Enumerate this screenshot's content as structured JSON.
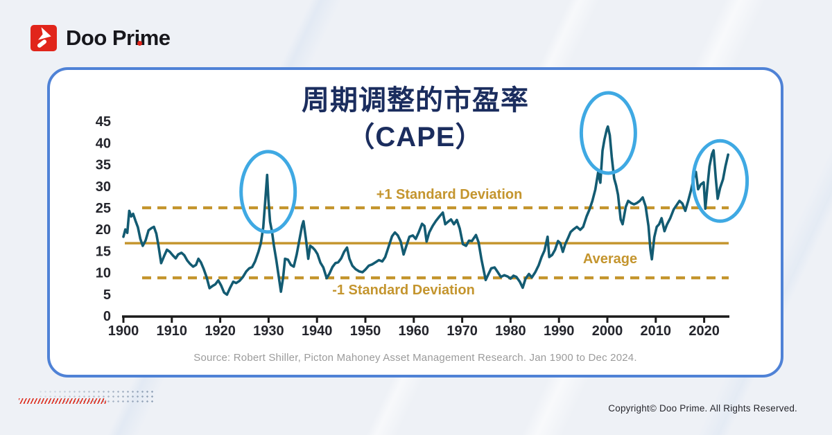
{
  "header": {
    "logo_text": "Doo Prime"
  },
  "chart_data": {
    "type": "line",
    "title_line1": "周期调整的市盈率",
    "title_line2": "（CAPE）",
    "xlabel": "",
    "ylabel": "",
    "xlim": [
      1900,
      2025
    ],
    "ylim": [
      0,
      45
    ],
    "grid": false,
    "x_ticks": [
      1900,
      1910,
      1920,
      1930,
      1940,
      1950,
      1960,
      1970,
      1980,
      1990,
      2000,
      2010,
      2020
    ],
    "y_ticks": [
      0,
      5,
      10,
      15,
      20,
      25,
      30,
      35,
      40,
      45
    ],
    "line_color": "#135b72",
    "gold_color": "#c4952e",
    "highlight_color": "#3fa9e3",
    "reference_lines": [
      {
        "label": "+1 Standard Deviation",
        "value": 25.0,
        "style": "dashed"
      },
      {
        "label": "Average",
        "value": 16.8,
        "style": "solid"
      },
      {
        "label": "-1 Standard Deviation",
        "value": 8.8,
        "style": "dashed"
      }
    ],
    "highlight_ellipses": [
      {
        "year": 1929.9,
        "value": 28.7
      },
      {
        "year": 2000.2,
        "value": 42.3
      },
      {
        "year": 2023.3,
        "value": 31.2
      }
    ],
    "series": [
      {
        "name": "CAPE",
        "points": [
          [
            1900.0,
            18.3
          ],
          [
            1900.4,
            20.0
          ],
          [
            1900.8,
            19.2
          ],
          [
            1901.2,
            24.3
          ],
          [
            1901.6,
            23.0
          ],
          [
            1902.0,
            23.6
          ],
          [
            1902.5,
            22.0
          ],
          [
            1903.0,
            20.5
          ],
          [
            1903.5,
            17.8
          ],
          [
            1904.0,
            16.2
          ],
          [
            1904.6,
            17.5
          ],
          [
            1905.2,
            19.8
          ],
          [
            1905.8,
            20.3
          ],
          [
            1906.3,
            20.6
          ],
          [
            1906.8,
            19.0
          ],
          [
            1907.2,
            16.5
          ],
          [
            1907.8,
            12.2
          ],
          [
            1908.4,
            13.8
          ],
          [
            1909.0,
            15.3
          ],
          [
            1909.6,
            14.8
          ],
          [
            1910.2,
            14.0
          ],
          [
            1910.8,
            13.3
          ],
          [
            1911.3,
            14.2
          ],
          [
            1912.0,
            14.6
          ],
          [
            1912.6,
            14.0
          ],
          [
            1913.2,
            12.8
          ],
          [
            1913.8,
            12.0
          ],
          [
            1914.4,
            11.4
          ],
          [
            1915.0,
            11.8
          ],
          [
            1915.5,
            13.2
          ],
          [
            1916.0,
            12.4
          ],
          [
            1916.6,
            10.8
          ],
          [
            1917.2,
            8.9
          ],
          [
            1917.8,
            6.4
          ],
          [
            1918.4,
            6.9
          ],
          [
            1919.0,
            7.3
          ],
          [
            1919.6,
            8.2
          ],
          [
            1920.2,
            7.0
          ],
          [
            1920.8,
            5.4
          ],
          [
            1921.4,
            4.9
          ],
          [
            1922.0,
            6.4
          ],
          [
            1922.7,
            7.9
          ],
          [
            1923.3,
            7.6
          ],
          [
            1924.0,
            8.1
          ],
          [
            1924.7,
            9.0
          ],
          [
            1925.4,
            10.3
          ],
          [
            1926.0,
            11.0
          ],
          [
            1926.6,
            11.3
          ],
          [
            1927.2,
            12.6
          ],
          [
            1927.9,
            14.8
          ],
          [
            1928.4,
            16.8
          ],
          [
            1928.9,
            20.5
          ],
          [
            1929.3,
            26.5
          ],
          [
            1929.7,
            32.6
          ],
          [
            1929.95,
            27.0
          ],
          [
            1930.3,
            21.8
          ],
          [
            1930.7,
            19.5
          ],
          [
            1931.1,
            16.2
          ],
          [
            1931.6,
            12.8
          ],
          [
            1932.1,
            9.0
          ],
          [
            1932.55,
            5.6
          ],
          [
            1933.0,
            8.8
          ],
          [
            1933.4,
            13.2
          ],
          [
            1934.0,
            13.0
          ],
          [
            1934.6,
            11.8
          ],
          [
            1935.2,
            11.4
          ],
          [
            1935.8,
            14.2
          ],
          [
            1936.3,
            17.2
          ],
          [
            1936.9,
            20.8
          ],
          [
            1937.2,
            21.9
          ],
          [
            1937.7,
            18.0
          ],
          [
            1938.2,
            13.2
          ],
          [
            1938.6,
            16.2
          ],
          [
            1939.1,
            15.8
          ],
          [
            1939.6,
            15.2
          ],
          [
            1940.1,
            14.3
          ],
          [
            1940.7,
            12.3
          ],
          [
            1941.3,
            11.2
          ],
          [
            1942.0,
            8.7
          ],
          [
            1942.6,
            9.8
          ],
          [
            1943.2,
            11.3
          ],
          [
            1943.8,
            12.2
          ],
          [
            1944.4,
            12.4
          ],
          [
            1945.0,
            13.3
          ],
          [
            1945.6,
            14.8
          ],
          [
            1946.2,
            15.8
          ],
          [
            1946.7,
            13.2
          ],
          [
            1947.3,
            11.6
          ],
          [
            1948.0,
            10.8
          ],
          [
            1948.7,
            10.3
          ],
          [
            1949.4,
            10.1
          ],
          [
            1950.0,
            10.7
          ],
          [
            1950.7,
            11.6
          ],
          [
            1951.4,
            11.9
          ],
          [
            1952.1,
            12.4
          ],
          [
            1952.8,
            12.9
          ],
          [
            1953.5,
            12.6
          ],
          [
            1954.1,
            13.6
          ],
          [
            1954.8,
            16.0
          ],
          [
            1955.5,
            18.4
          ],
          [
            1956.1,
            19.3
          ],
          [
            1956.7,
            18.6
          ],
          [
            1957.3,
            17.2
          ],
          [
            1957.9,
            14.2
          ],
          [
            1958.5,
            16.3
          ],
          [
            1959.1,
            18.3
          ],
          [
            1959.8,
            18.6
          ],
          [
            1960.4,
            17.8
          ],
          [
            1961.0,
            19.3
          ],
          [
            1961.7,
            21.3
          ],
          [
            1962.2,
            20.8
          ],
          [
            1962.65,
            17.2
          ],
          [
            1963.2,
            19.3
          ],
          [
            1963.9,
            20.8
          ],
          [
            1964.6,
            22.0
          ],
          [
            1965.3,
            23.0
          ],
          [
            1966.0,
            23.9
          ],
          [
            1966.5,
            21.2
          ],
          [
            1967.1,
            21.8
          ],
          [
            1967.7,
            22.3
          ],
          [
            1968.3,
            21.2
          ],
          [
            1968.9,
            22.2
          ],
          [
            1969.5,
            20.2
          ],
          [
            1970.15,
            16.6
          ],
          [
            1970.8,
            16.2
          ],
          [
            1971.4,
            17.4
          ],
          [
            1972.0,
            17.3
          ],
          [
            1972.85,
            18.7
          ],
          [
            1973.4,
            17.0
          ],
          [
            1974.0,
            13.0
          ],
          [
            1974.85,
            8.3
          ],
          [
            1975.4,
            9.6
          ],
          [
            1976.0,
            11.0
          ],
          [
            1976.7,
            11.2
          ],
          [
            1977.3,
            10.2
          ],
          [
            1978.0,
            9.0
          ],
          [
            1978.7,
            9.4
          ],
          [
            1979.4,
            9.1
          ],
          [
            1980.0,
            8.6
          ],
          [
            1980.6,
            9.3
          ],
          [
            1981.2,
            9.0
          ],
          [
            1981.9,
            7.9
          ],
          [
            1982.5,
            6.5
          ],
          [
            1983.1,
            8.6
          ],
          [
            1983.8,
            9.7
          ],
          [
            1984.4,
            8.9
          ],
          [
            1985.1,
            10.1
          ],
          [
            1985.8,
            11.7
          ],
          [
            1986.4,
            13.6
          ],
          [
            1987.0,
            15.1
          ],
          [
            1987.65,
            18.3
          ],
          [
            1988.0,
            13.6
          ],
          [
            1988.6,
            14.1
          ],
          [
            1989.2,
            15.3
          ],
          [
            1989.8,
            17.3
          ],
          [
            1990.3,
            16.8
          ],
          [
            1990.8,
            14.8
          ],
          [
            1991.3,
            16.6
          ],
          [
            1991.9,
            18.1
          ],
          [
            1992.4,
            19.4
          ],
          [
            1993.0,
            20.0
          ],
          [
            1993.7,
            20.6
          ],
          [
            1994.4,
            19.9
          ],
          [
            1995.0,
            20.6
          ],
          [
            1995.7,
            23.0
          ],
          [
            1996.3,
            24.6
          ],
          [
            1996.9,
            26.6
          ],
          [
            1997.5,
            29.2
          ],
          [
            1998.1,
            33.2
          ],
          [
            1998.55,
            30.8
          ],
          [
            1999.0,
            38.2
          ],
          [
            1999.4,
            40.8
          ],
          [
            1999.9,
            43.2
          ],
          [
            2000.1,
            43.8
          ],
          [
            2000.5,
            41.8
          ],
          [
            2000.9,
            36.8
          ],
          [
            2001.4,
            31.8
          ],
          [
            2001.8,
            30.2
          ],
          [
            2002.2,
            28.0
          ],
          [
            2002.75,
            22.3
          ],
          [
            2003.15,
            21.2
          ],
          [
            2003.8,
            25.2
          ],
          [
            2004.3,
            26.6
          ],
          [
            2004.9,
            26.1
          ],
          [
            2005.5,
            25.8
          ],
          [
            2006.1,
            26.1
          ],
          [
            2006.7,
            26.6
          ],
          [
            2007.3,
            27.4
          ],
          [
            2007.9,
            25.4
          ],
          [
            2008.5,
            20.8
          ],
          [
            2008.9,
            15.3
          ],
          [
            2009.2,
            13.1
          ],
          [
            2009.7,
            18.2
          ],
          [
            2010.2,
            20.6
          ],
          [
            2010.7,
            21.2
          ],
          [
            2011.2,
            22.6
          ],
          [
            2011.8,
            19.6
          ],
          [
            2012.3,
            21.1
          ],
          [
            2013.0,
            22.6
          ],
          [
            2013.7,
            24.6
          ],
          [
            2014.3,
            25.6
          ],
          [
            2014.9,
            26.6
          ],
          [
            2015.5,
            26.0
          ],
          [
            2016.1,
            24.3
          ],
          [
            2016.7,
            26.6
          ],
          [
            2017.3,
            29.2
          ],
          [
            2017.9,
            32.1
          ],
          [
            2018.3,
            33.3
          ],
          [
            2018.75,
            29.3
          ],
          [
            2019.3,
            30.4
          ],
          [
            2019.9,
            30.9
          ],
          [
            2020.25,
            24.8
          ],
          [
            2020.7,
            30.2
          ],
          [
            2021.1,
            34.6
          ],
          [
            2021.6,
            37.4
          ],
          [
            2021.95,
            38.3
          ],
          [
            2022.4,
            31.8
          ],
          [
            2022.8,
            27.1
          ],
          [
            2023.3,
            29.6
          ],
          [
            2023.9,
            31.6
          ],
          [
            2024.4,
            34.6
          ],
          [
            2024.95,
            37.3
          ]
        ]
      }
    ],
    "source": "Source: Robert Shiller, Picton Mahoney Asset Management Research. Jan 1900 to Dec 2024."
  },
  "footer": {
    "copyright": "Copyright© Doo Prime. All Rights Reserved."
  }
}
